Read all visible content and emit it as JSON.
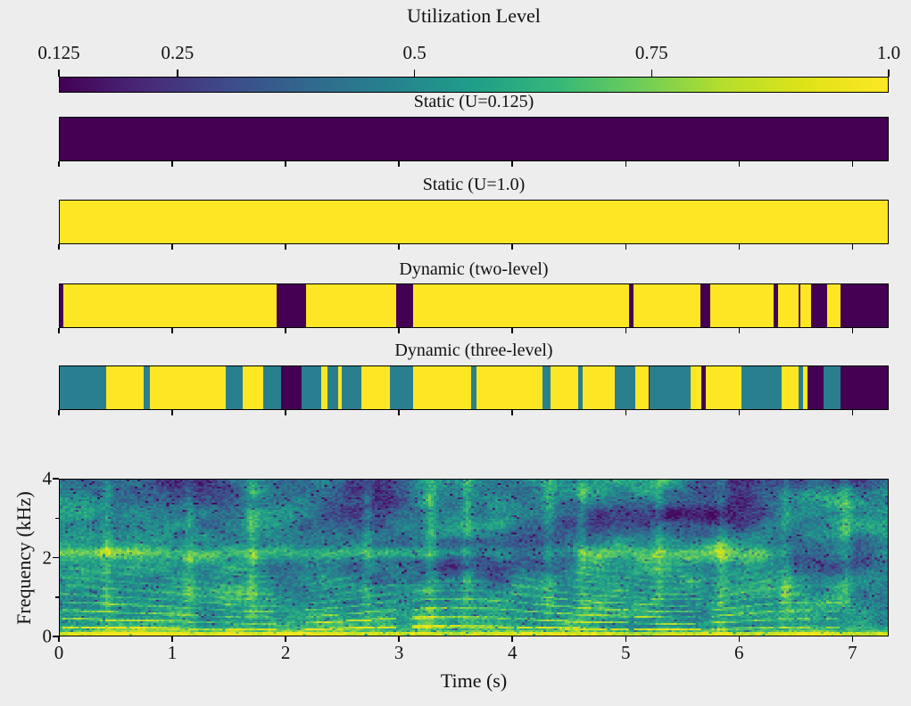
{
  "colors": {
    "background": "#ededed",
    "axis": "#000000",
    "text": "#111111",
    "level_colors": {
      "0.125": "#440154",
      "0.5": "#2a7f8e",
      "1": "#fde725"
    },
    "viridis_stops": [
      "#440154",
      "#482878",
      "#3e4a89",
      "#31688e",
      "#26828e",
      "#1f9e89",
      "#35b779",
      "#6dcd59",
      "#b4de2c",
      "#dfe318",
      "#fde725"
    ]
  },
  "chart_data": [
    {
      "type": "colorbar",
      "title": "Utilization Level",
      "cmap": "viridis",
      "orientation": "horizontal",
      "ticks_position": "top",
      "range": [
        0.125,
        1.0
      ],
      "tick_values": [
        0.125,
        0.25,
        0.5,
        0.75,
        1.0
      ],
      "tick_labels": [
        "0.125",
        "0.25",
        "0.5",
        "0.75",
        "1.0"
      ]
    },
    {
      "type": "heatmap",
      "subtype": "utilization-strip",
      "title": "Static (U=0.125)",
      "x_range": [
        0,
        7.32
      ],
      "levels": [
        0.125
      ],
      "segments": [
        {
          "t0": 0.0,
          "t1": 7.32,
          "u": 0.125
        }
      ]
    },
    {
      "type": "heatmap",
      "subtype": "utilization-strip",
      "title": "Static (U=1.0)",
      "x_range": [
        0,
        7.32
      ],
      "levels": [
        1
      ],
      "segments": [
        {
          "t0": 0.0,
          "t1": 7.32,
          "u": 1
        }
      ]
    },
    {
      "type": "heatmap",
      "subtype": "utilization-strip",
      "title": "Dynamic (two-level)",
      "x_range": [
        0,
        7.32
      ],
      "levels": [
        0.125,
        1
      ],
      "segments": [
        {
          "t0": 0.0,
          "t1": 0.03,
          "u": 0.125
        },
        {
          "t0": 0.03,
          "t1": 1.92,
          "u": 1
        },
        {
          "t0": 1.92,
          "t1": 2.18,
          "u": 0.125
        },
        {
          "t0": 2.18,
          "t1": 2.97,
          "u": 1
        },
        {
          "t0": 2.97,
          "t1": 3.12,
          "u": 0.125
        },
        {
          "t0": 3.12,
          "t1": 5.03,
          "u": 1
        },
        {
          "t0": 5.03,
          "t1": 5.07,
          "u": 0.125
        },
        {
          "t0": 5.07,
          "t1": 5.66,
          "u": 1
        },
        {
          "t0": 5.66,
          "t1": 5.75,
          "u": 0.125
        },
        {
          "t0": 5.75,
          "t1": 6.31,
          "u": 1
        },
        {
          "t0": 6.31,
          "t1": 6.35,
          "u": 0.125
        },
        {
          "t0": 6.35,
          "t1": 6.53,
          "u": 1
        },
        {
          "t0": 6.53,
          "t1": 6.55,
          "u": 0.125
        },
        {
          "t0": 6.55,
          "t1": 6.64,
          "u": 1
        },
        {
          "t0": 6.64,
          "t1": 6.78,
          "u": 0.125
        },
        {
          "t0": 6.78,
          "t1": 6.9,
          "u": 1
        },
        {
          "t0": 6.9,
          "t1": 7.32,
          "u": 0.125
        }
      ]
    },
    {
      "type": "heatmap",
      "subtype": "utilization-strip",
      "title": "Dynamic (three-level)",
      "x_range": [
        0,
        7.32
      ],
      "levels": [
        0.125,
        0.5,
        1
      ],
      "segments": [
        {
          "t0": 0.0,
          "t1": 0.41,
          "u": 0.5
        },
        {
          "t0": 0.41,
          "t1": 0.74,
          "u": 1
        },
        {
          "t0": 0.74,
          "t1": 0.8,
          "u": 0.5
        },
        {
          "t0": 0.8,
          "t1": 1.47,
          "u": 1
        },
        {
          "t0": 1.47,
          "t1": 1.62,
          "u": 0.5
        },
        {
          "t0": 1.62,
          "t1": 1.8,
          "u": 1
        },
        {
          "t0": 1.8,
          "t1": 1.96,
          "u": 0.5
        },
        {
          "t0": 1.96,
          "t1": 2.14,
          "u": 0.125
        },
        {
          "t0": 2.14,
          "t1": 2.31,
          "u": 0.5
        },
        {
          "t0": 2.31,
          "t1": 2.37,
          "u": 1
        },
        {
          "t0": 2.37,
          "t1": 2.46,
          "u": 0.5
        },
        {
          "t0": 2.46,
          "t1": 2.49,
          "u": 1
        },
        {
          "t0": 2.49,
          "t1": 2.67,
          "u": 0.5
        },
        {
          "t0": 2.67,
          "t1": 2.92,
          "u": 1
        },
        {
          "t0": 2.92,
          "t1": 3.12,
          "u": 0.5
        },
        {
          "t0": 3.12,
          "t1": 3.64,
          "u": 1
        },
        {
          "t0": 3.64,
          "t1": 3.68,
          "u": 0.5
        },
        {
          "t0": 3.68,
          "t1": 4.27,
          "u": 1
        },
        {
          "t0": 4.27,
          "t1": 4.34,
          "u": 0.5
        },
        {
          "t0": 4.34,
          "t1": 4.58,
          "u": 1
        },
        {
          "t0": 4.58,
          "t1": 4.62,
          "u": 0.5
        },
        {
          "t0": 4.62,
          "t1": 4.91,
          "u": 1
        },
        {
          "t0": 4.91,
          "t1": 5.09,
          "u": 0.5
        },
        {
          "t0": 5.09,
          "t1": 5.21,
          "u": 1
        },
        {
          "t0": 5.21,
          "t1": 5.58,
          "u": 0.5
        },
        {
          "t0": 5.58,
          "t1": 5.67,
          "u": 1
        },
        {
          "t0": 5.67,
          "t1": 5.71,
          "u": 0.125
        },
        {
          "t0": 5.71,
          "t1": 6.03,
          "u": 1
        },
        {
          "t0": 6.03,
          "t1": 6.38,
          "u": 0.5
        },
        {
          "t0": 6.38,
          "t1": 6.53,
          "u": 1
        },
        {
          "t0": 6.53,
          "t1": 6.57,
          "u": 0.5
        },
        {
          "t0": 6.57,
          "t1": 6.61,
          "u": 1
        },
        {
          "t0": 6.61,
          "t1": 6.75,
          "u": 0.125
        },
        {
          "t0": 6.75,
          "t1": 6.9,
          "u": 0.5
        },
        {
          "t0": 6.9,
          "t1": 7.32,
          "u": 0.125
        }
      ]
    },
    {
      "type": "heatmap",
      "subtype": "spectrogram",
      "xlabel": "Time (s)",
      "ylabel": "Frequency (kHz)",
      "x_range": [
        0,
        7.32
      ],
      "y_range": [
        0,
        4
      ],
      "x_ticks": [
        0,
        1,
        2,
        3,
        4,
        5,
        6,
        7
      ],
      "y_ticks": [
        0,
        2,
        4
      ],
      "y_minor_ticks": [
        1,
        3
      ],
      "cmap": "viridis",
      "description": "Speech spectrogram 0-4 kHz: bright band at 0 kHz, voiced harmonic striations below ~2 kHz, energy band near 2.1 kHz, darker mottled region above 2.5 kHz"
    }
  ]
}
